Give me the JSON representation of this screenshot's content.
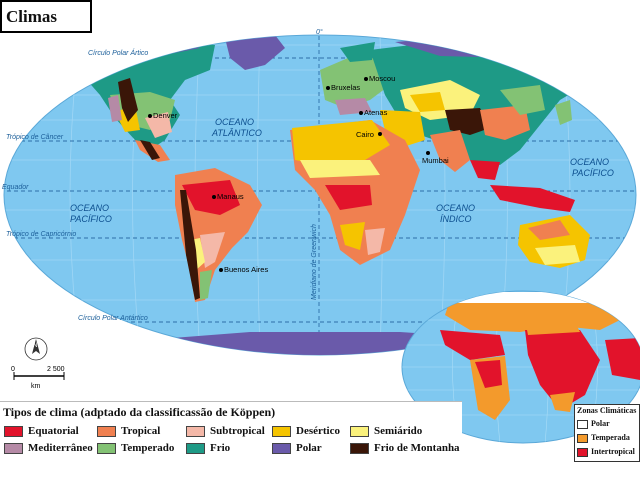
{
  "title": "Climas",
  "colors": {
    "ocean": "#7fc8f0",
    "equatorial": "#e2132b",
    "tropical": "#f08050",
    "subtropical": "#f4b8a8",
    "desertico": "#f5c400",
    "semiarido": "#fbf27c",
    "mediterraneo": "#b58aa6",
    "temperado": "#83c274",
    "frio": "#1e9a86",
    "polar": "#6a5aaa",
    "montanha": "#3a1608",
    "zone_polar": "#ffffff",
    "zone_temperada": "#f39a2c",
    "zone_intertropical": "#e2132b"
  },
  "map_labels": {
    "oceans": [
      "OCEANO",
      "ATLÂNTICO",
      "OCEANO",
      "PACÍFICO",
      "OCEANO",
      "PACÍFICO",
      "OCEANO",
      "ÍNDICO"
    ],
    "lines": {
      "polar_artico": "Círculo Polar Ártico",
      "cancer": "Trópico de Câncer",
      "equador": "Equador",
      "capricornio": "Trópico de Capricórnio",
      "polar_antartico": "Círculo Polar Antártico",
      "greenwich": "Meridiano de Greenwich",
      "zero": "0°"
    },
    "cities": [
      "Moscou",
      "Bruxelas",
      "Atenas",
      "Cairo",
      "Mumbai",
      "Denver",
      "Manaus",
      "Buenos Aires"
    ]
  },
  "scale": {
    "zero": "0",
    "value": "2 500",
    "unit": "km",
    "north": "N"
  },
  "legend": {
    "title": "Tipos de clima (adptado da classificassão de Köppen)",
    "items": [
      {
        "label": "Equatorial",
        "color": "#e2132b"
      },
      {
        "label": "Tropical",
        "color": "#f08050"
      },
      {
        "label": "Subtropical",
        "color": "#f4b8a8"
      },
      {
        "label": "Desértico",
        "color": "#f5c400"
      },
      {
        "label": "Semiárido",
        "color": "#fbf27c"
      },
      {
        "label": "Mediterrâneo",
        "color": "#b58aa6"
      },
      {
        "label": "Temperado",
        "color": "#83c274"
      },
      {
        "label": "Frio",
        "color": "#1e9a86"
      },
      {
        "label": "Polar",
        "color": "#6a5aaa"
      },
      {
        "label": "Frio de Montanha",
        "color": "#3a1608"
      }
    ]
  },
  "zones": {
    "title": "Zonas Climáticas",
    "items": [
      {
        "label": "Polar",
        "color": "#ffffff"
      },
      {
        "label": "Temperada",
        "color": "#f39a2c"
      },
      {
        "label": "Intertropical",
        "color": "#e2132b"
      }
    ]
  }
}
